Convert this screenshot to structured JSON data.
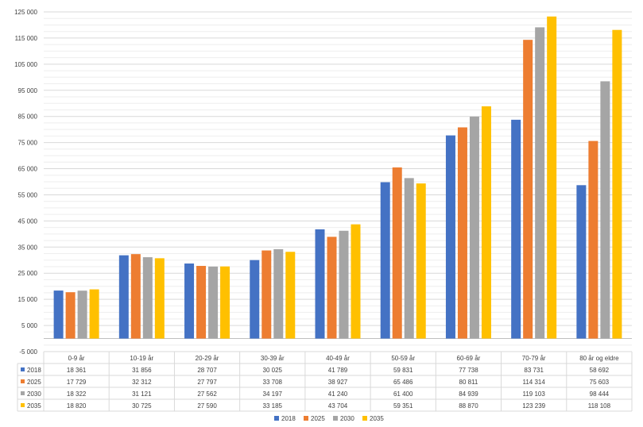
{
  "chart_data": {
    "type": "bar",
    "categories": [
      "0-9 år",
      "10-19 år",
      "20-29 år",
      "30-39 år",
      "40-49 år",
      "50-59 år",
      "60-69 år",
      "70-79 år",
      "80 år og eldre"
    ],
    "series": [
      {
        "name": "2018",
        "color": "#4472C4",
        "values": [
          18361,
          31856,
          28707,
          30025,
          41789,
          59831,
          77738,
          83731,
          58692
        ],
        "labels": [
          "18 361",
          "31 856",
          "28 707",
          "30 025",
          "41 789",
          "59 831",
          "77 738",
          "83 731",
          "58 692"
        ]
      },
      {
        "name": "2025",
        "color": "#ED7D31",
        "values": [
          17729,
          32312,
          27797,
          33708,
          38927,
          65486,
          80811,
          114314,
          75603
        ],
        "labels": [
          "17 729",
          "32 312",
          "27 797",
          "33 708",
          "38 927",
          "65 486",
          "80 811",
          "114 314",
          "75 603"
        ]
      },
      {
        "name": "2030",
        "color": "#A5A5A5",
        "values": [
          18322,
          31121,
          27562,
          34197,
          41240,
          61400,
          84939,
          119103,
          98444
        ],
        "labels": [
          "18 322",
          "31 121",
          "27 562",
          "34 197",
          "41 240",
          "61 400",
          "84 939",
          "119 103",
          "98 444"
        ]
      },
      {
        "name": "2035",
        "color": "#FFC000",
        "values": [
          18820,
          30725,
          27590,
          33185,
          43704,
          59351,
          88870,
          123239,
          118108
        ],
        "labels": [
          "18 820",
          "30 725",
          "27 590",
          "33 185",
          "43 704",
          "59 351",
          "88 870",
          "123 239",
          "118 108"
        ]
      }
    ],
    "y_ticks": [
      -5000,
      5000,
      15000,
      25000,
      35000,
      45000,
      55000,
      65000,
      75000,
      85000,
      95000,
      105000,
      115000,
      125000
    ],
    "y_tick_labels": [
      "-5 000",
      "5 000",
      "15 000",
      "25 000",
      "35 000",
      "45 000",
      "55 000",
      "65 000",
      "75 000",
      "85 000",
      "95 000",
      "105 000",
      "115 000",
      "125 000"
    ],
    "ylim": [
      -5000,
      125000
    ],
    "grid": true,
    "legend_position": "bottom",
    "data_table": true
  }
}
